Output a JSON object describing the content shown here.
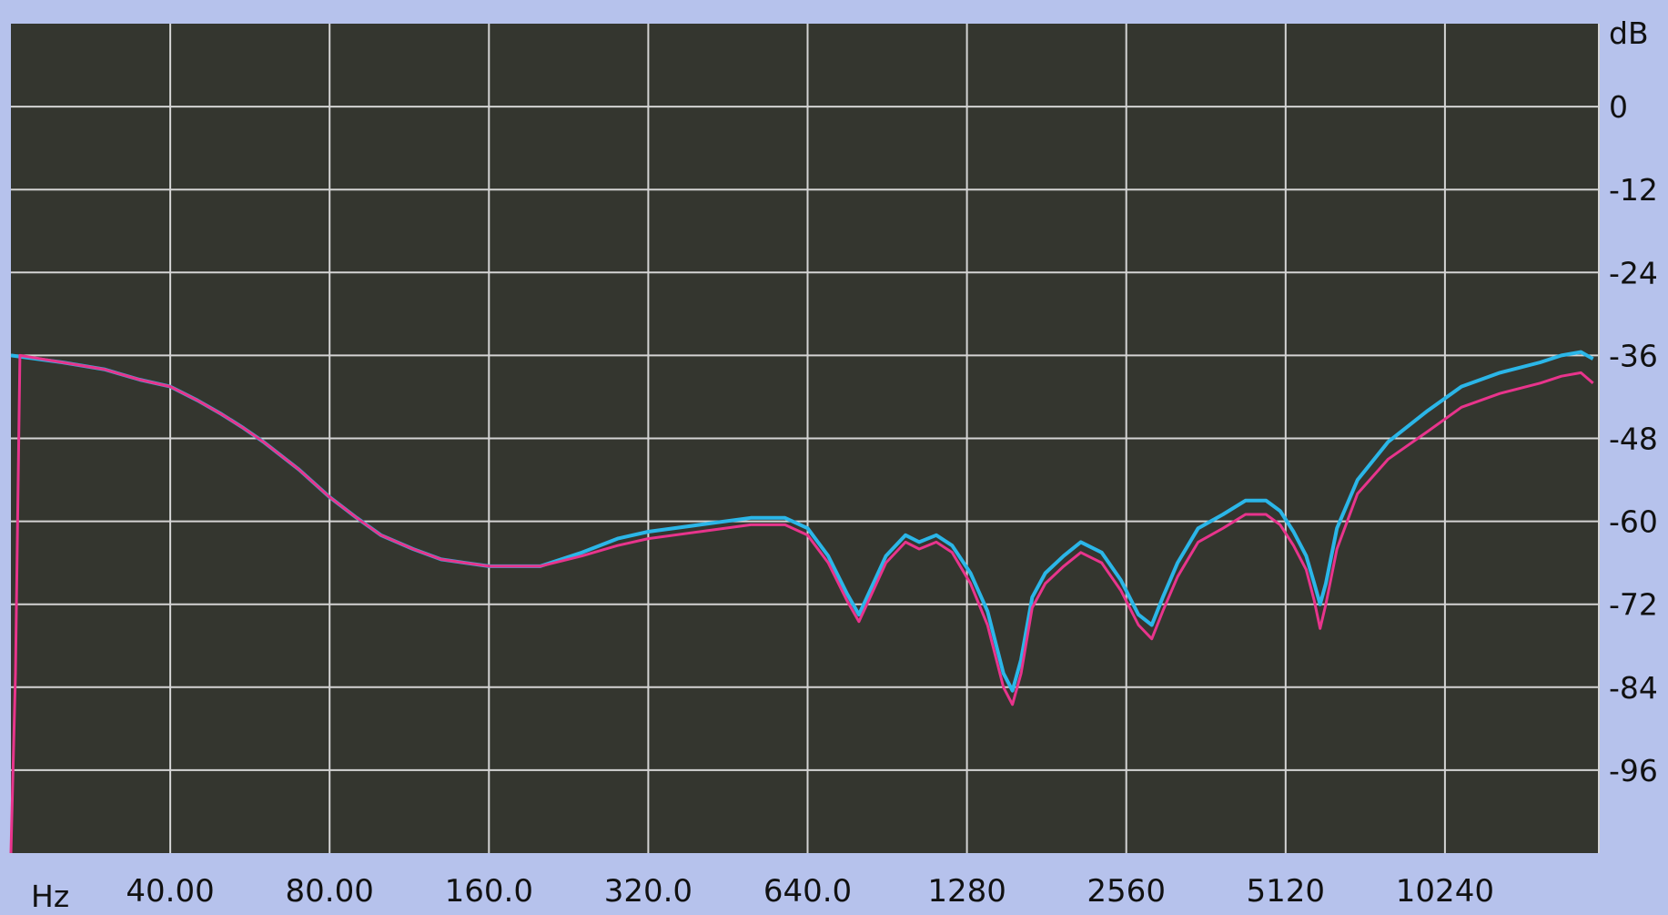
{
  "colors": {
    "background": "#b6c2ec",
    "plot_background": "#34362f",
    "grid": "#d4d4d4",
    "series_cyan": "#2bb6e8",
    "series_magenta": "#e8348c"
  },
  "chart_data": {
    "type": "line",
    "x_scale": "log2",
    "xlabel": "Hz",
    "ylabel": "dB",
    "x_ticks": [
      "40.00",
      "80.00",
      "160.0",
      "320.0",
      "640.0",
      "1280",
      "2560",
      "5120",
      "10240"
    ],
    "y_ticks": [
      "0",
      "-12",
      "-24",
      "-36",
      "-48",
      "-60",
      "-72",
      "-84",
      "-96"
    ],
    "xlim": [
      20,
      20000
    ],
    "ylim": [
      -108,
      12
    ],
    "grid": true,
    "legend": "none",
    "series": [
      {
        "color": "#2bb6e8",
        "points": [
          [
            20,
            -36
          ],
          [
            25,
            -37
          ],
          [
            30,
            -38
          ],
          [
            35,
            -39.5
          ],
          [
            40,
            -40.5
          ],
          [
            45,
            -42.5
          ],
          [
            50,
            -44.5
          ],
          [
            55,
            -46.5
          ],
          [
            60,
            -48.5
          ],
          [
            70,
            -52.5
          ],
          [
            80,
            -56.5
          ],
          [
            90,
            -59.5
          ],
          [
            100,
            -62
          ],
          [
            115,
            -64
          ],
          [
            130,
            -65.5
          ],
          [
            160,
            -66.5
          ],
          [
            200,
            -66.5
          ],
          [
            240,
            -64.5
          ],
          [
            280,
            -62.5
          ],
          [
            320,
            -61.5
          ],
          [
            400,
            -60.5
          ],
          [
            500,
            -59.5
          ],
          [
            580,
            -59.5
          ],
          [
            640,
            -61
          ],
          [
            700,
            -65
          ],
          [
            760,
            -70.5
          ],
          [
            800,
            -73.5
          ],
          [
            840,
            -70
          ],
          [
            900,
            -65
          ],
          [
            980,
            -62
          ],
          [
            1040,
            -63
          ],
          [
            1120,
            -62
          ],
          [
            1200,
            -63.5
          ],
          [
            1300,
            -67.5
          ],
          [
            1400,
            -73
          ],
          [
            1500,
            -82
          ],
          [
            1560,
            -84.5
          ],
          [
            1620,
            -80
          ],
          [
            1700,
            -71
          ],
          [
            1800,
            -67.5
          ],
          [
            1950,
            -65
          ],
          [
            2100,
            -63
          ],
          [
            2300,
            -64.5
          ],
          [
            2500,
            -68.5
          ],
          [
            2700,
            -73.5
          ],
          [
            2860,
            -75
          ],
          [
            3000,
            -71
          ],
          [
            3200,
            -66
          ],
          [
            3500,
            -61
          ],
          [
            3900,
            -59
          ],
          [
            4300,
            -57
          ],
          [
            4700,
            -57
          ],
          [
            5000,
            -58.5
          ],
          [
            5300,
            -61.5
          ],
          [
            5600,
            -65
          ],
          [
            5800,
            -69
          ],
          [
            5950,
            -72
          ],
          [
            6100,
            -69
          ],
          [
            6400,
            -61
          ],
          [
            7000,
            -54
          ],
          [
            8000,
            -48.5
          ],
          [
            9500,
            -44
          ],
          [
            11000,
            -40.5
          ],
          [
            13000,
            -38.5
          ],
          [
            15500,
            -37
          ],
          [
            17000,
            -36
          ],
          [
            18500,
            -35.5
          ],
          [
            19500,
            -36.5
          ]
        ]
      },
      {
        "color": "#e8348c",
        "points": [
          [
            20,
            -108
          ],
          [
            20.4,
            -82
          ],
          [
            20.8,
            -36
          ],
          [
            25,
            -37
          ],
          [
            30,
            -38
          ],
          [
            35,
            -39.5
          ],
          [
            40,
            -40.5
          ],
          [
            45,
            -42.5
          ],
          [
            50,
            -44.5
          ],
          [
            55,
            -46.5
          ],
          [
            60,
            -48.5
          ],
          [
            70,
            -52.5
          ],
          [
            80,
            -56.5
          ],
          [
            90,
            -59.5
          ],
          [
            100,
            -62
          ],
          [
            115,
            -64
          ],
          [
            130,
            -65.5
          ],
          [
            160,
            -66.5
          ],
          [
            200,
            -66.5
          ],
          [
            240,
            -65
          ],
          [
            280,
            -63.5
          ],
          [
            320,
            -62.5
          ],
          [
            400,
            -61.5
          ],
          [
            500,
            -60.5
          ],
          [
            580,
            -60.5
          ],
          [
            640,
            -62
          ],
          [
            700,
            -66
          ],
          [
            760,
            -71.5
          ],
          [
            800,
            -74.5
          ],
          [
            840,
            -71
          ],
          [
            900,
            -66
          ],
          [
            980,
            -63
          ],
          [
            1040,
            -64
          ],
          [
            1120,
            -63
          ],
          [
            1200,
            -64.5
          ],
          [
            1300,
            -69
          ],
          [
            1400,
            -75
          ],
          [
            1500,
            -84
          ],
          [
            1560,
            -86.5
          ],
          [
            1620,
            -82
          ],
          [
            1700,
            -72.5
          ],
          [
            1800,
            -69
          ],
          [
            1950,
            -66.5
          ],
          [
            2100,
            -64.5
          ],
          [
            2300,
            -66
          ],
          [
            2500,
            -70
          ],
          [
            2700,
            -75
          ],
          [
            2860,
            -77
          ],
          [
            3000,
            -73
          ],
          [
            3200,
            -68
          ],
          [
            3500,
            -63
          ],
          [
            3900,
            -61
          ],
          [
            4300,
            -59
          ],
          [
            4700,
            -59
          ],
          [
            5000,
            -60.5
          ],
          [
            5300,
            -63.5
          ],
          [
            5600,
            -67
          ],
          [
            5800,
            -71.5
          ],
          [
            5950,
            -75.5
          ],
          [
            6100,
            -72
          ],
          [
            6400,
            -64
          ],
          [
            7000,
            -56
          ],
          [
            8000,
            -51
          ],
          [
            9500,
            -47
          ],
          [
            11000,
            -43.5
          ],
          [
            13000,
            -41.5
          ],
          [
            15500,
            -40
          ],
          [
            17000,
            -39
          ],
          [
            18500,
            -38.5
          ],
          [
            19500,
            -40
          ]
        ]
      }
    ]
  }
}
